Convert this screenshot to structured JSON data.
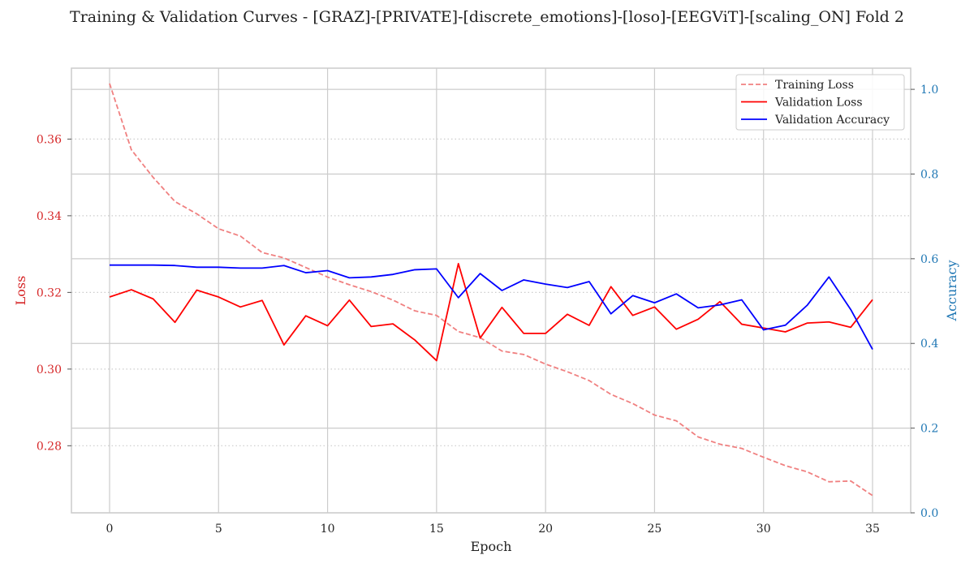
{
  "chart_data": {
    "type": "line",
    "title": "Training & Validation Curves - [GRAZ]-[PRIVATE]-[discrete_emotions]-[loso]-[EEGViT]-[scaling_ON] Fold 2",
    "xlabel": "Epoch",
    "ylabel_left": "Loss",
    "ylabel_right": "Accuracy",
    "xlim": [
      -1.75,
      36.75
    ],
    "ylim_left": [
      0.2625,
      0.3785
    ],
    "ylim_right": [
      0.0,
      1.05
    ],
    "x_ticks": [
      0,
      5,
      10,
      15,
      20,
      25,
      30,
      35
    ],
    "y_left_ticks": [
      0.28,
      0.3,
      0.32,
      0.34,
      0.36
    ],
    "y_right_ticks": [
      0.0,
      0.2,
      0.4,
      0.6,
      0.8,
      1.0
    ],
    "grid": true,
    "legend_position": "top-right",
    "x": [
      0,
      1,
      2,
      3,
      4,
      5,
      6,
      7,
      8,
      9,
      10,
      11,
      12,
      13,
      14,
      15,
      16,
      17,
      18,
      19,
      20,
      21,
      22,
      23,
      24,
      25,
      26,
      27,
      28,
      29,
      30,
      31,
      32,
      33,
      34,
      35
    ],
    "series": [
      {
        "name": "Training Loss",
        "axis": "left",
        "style": "dashed",
        "color": "#f08080",
        "values": [
          0.3745,
          0.3572,
          0.35,
          0.3437,
          0.3405,
          0.3366,
          0.3347,
          0.3304,
          0.329,
          0.3265,
          0.324,
          0.322,
          0.3202,
          0.318,
          0.3152,
          0.314,
          0.3098,
          0.3082,
          0.3047,
          0.3038,
          0.3013,
          0.2993,
          0.297,
          0.2934,
          0.291,
          0.288,
          0.2865,
          0.2823,
          0.2804,
          0.2793,
          0.277,
          0.2748,
          0.2732,
          0.2706,
          0.2708,
          0.267
        ]
      },
      {
        "name": "Validation Loss",
        "axis": "left",
        "style": "solid",
        "color": "#ff0000",
        "values": [
          0.3188,
          0.3207,
          0.3183,
          0.3122,
          0.3206,
          0.3188,
          0.3162,
          0.3179,
          0.3063,
          0.3139,
          0.3113,
          0.318,
          0.3111,
          0.3118,
          0.3076,
          0.3022,
          0.3275,
          0.3081,
          0.3161,
          0.3093,
          0.3093,
          0.3143,
          0.3114,
          0.3215,
          0.314,
          0.3162,
          0.3104,
          0.313,
          0.3176,
          0.3117,
          0.3107,
          0.3097,
          0.312,
          0.3123,
          0.3109,
          0.3181
        ]
      },
      {
        "name": "Validation Accuracy",
        "axis": "right",
        "style": "solid",
        "color": "#0000ff",
        "values": [
          0.585,
          0.585,
          0.585,
          0.584,
          0.58,
          0.58,
          0.578,
          0.578,
          0.584,
          0.567,
          0.572,
          0.555,
          0.557,
          0.563,
          0.574,
          0.576,
          0.508,
          0.565,
          0.525,
          0.55,
          0.54,
          0.532,
          0.546,
          0.47,
          0.513,
          0.496,
          0.517,
          0.484,
          0.491,
          0.503,
          0.432,
          0.443,
          0.49,
          0.557,
          0.48,
          0.386
        ]
      }
    ]
  },
  "colors": {
    "left_axis": "#d62728",
    "right_axis": "#1f77b4",
    "grid": "#cccccc",
    "axes_border": "#cccccc"
  }
}
